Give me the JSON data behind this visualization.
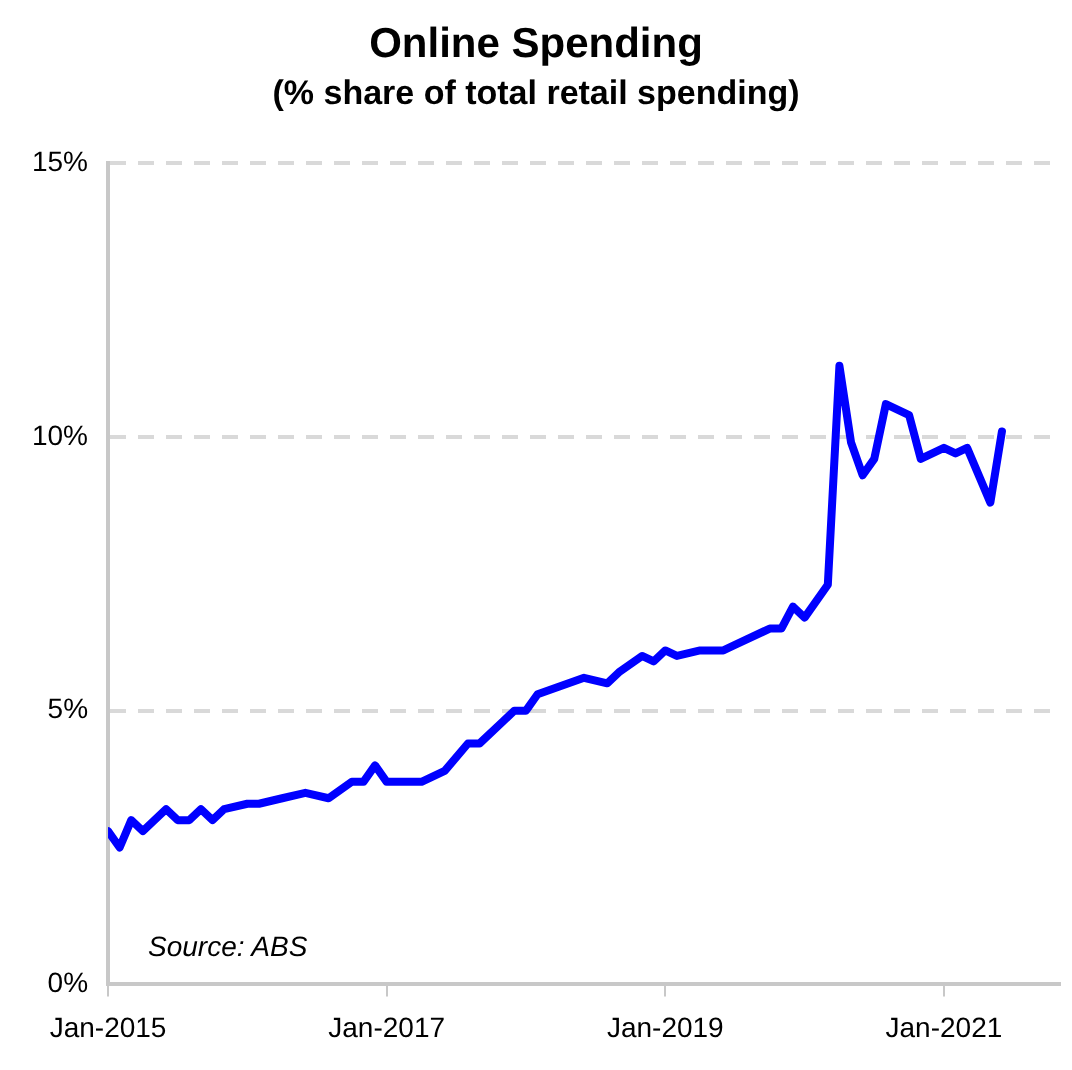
{
  "chart_data": {
    "type": "line",
    "title": "Online Spending",
    "subtitle": "(% share of total retail spending)",
    "x": [
      "2015-01",
      "2015-02",
      "2015-03",
      "2015-04",
      "2015-06",
      "2015-07",
      "2015-08",
      "2015-09",
      "2015-10",
      "2015-11",
      "2016-01",
      "2016-02",
      "2016-04",
      "2016-06",
      "2016-08",
      "2016-10",
      "2016-11",
      "2016-12",
      "2017-01",
      "2017-03",
      "2017-04",
      "2017-05",
      "2017-06",
      "2017-08",
      "2017-09",
      "2017-11",
      "2017-12",
      "2018-01",
      "2018-02",
      "2018-06",
      "2018-08",
      "2018-09",
      "2018-11",
      "2018-12",
      "2019-01",
      "2019-02",
      "2019-04",
      "2019-06",
      "2019-07",
      "2019-10",
      "2019-11",
      "2019-12",
      "2020-01",
      "2020-03",
      "2020-04",
      "2020-05",
      "2020-06",
      "2020-07",
      "2020-08",
      "2020-10",
      "2020-11",
      "2021-01",
      "2021-02",
      "2021-03",
      "2021-05",
      "2021-06"
    ],
    "series": [
      {
        "color": "#0000ff",
        "values": [
          2.8,
          2.5,
          3.0,
          2.8,
          3.2,
          3.0,
          3.0,
          3.2,
          3.0,
          3.2,
          3.3,
          3.3,
          3.4,
          3.5,
          3.4,
          3.7,
          3.7,
          4.0,
          3.7,
          3.7,
          3.7,
          3.8,
          3.9,
          4.4,
          4.4,
          4.8,
          5.0,
          5.0,
          5.3,
          5.6,
          5.5,
          5.7,
          6.0,
          5.9,
          6.1,
          6.0,
          6.1,
          6.1,
          6.2,
          6.5,
          6.5,
          6.9,
          6.7,
          7.3,
          11.3,
          9.9,
          9.3,
          9.6,
          10.6,
          10.4,
          9.6,
          9.8,
          9.7,
          9.8,
          8.8,
          10.1
        ]
      }
    ],
    "xlim": [
      "2015-01",
      "2021-11"
    ],
    "xticks": [
      {
        "value": "2015-01",
        "label": "Jan-2015"
      },
      {
        "value": "2017-01",
        "label": "Jan-2017"
      },
      {
        "value": "2019-01",
        "label": "Jan-2019"
      },
      {
        "value": "2021-01",
        "label": "Jan-2021"
      }
    ],
    "ylim": [
      0,
      15
    ],
    "yticks": [
      {
        "value": 0,
        "label": "0%"
      },
      {
        "value": 5,
        "label": "5%"
      },
      {
        "value": 10,
        "label": "10%"
      },
      {
        "value": 15,
        "label": "15%"
      }
    ],
    "grid": "y",
    "legend": false,
    "marker": "none",
    "line_style": "solid",
    "annotations": [
      "Source: ABS"
    ]
  }
}
